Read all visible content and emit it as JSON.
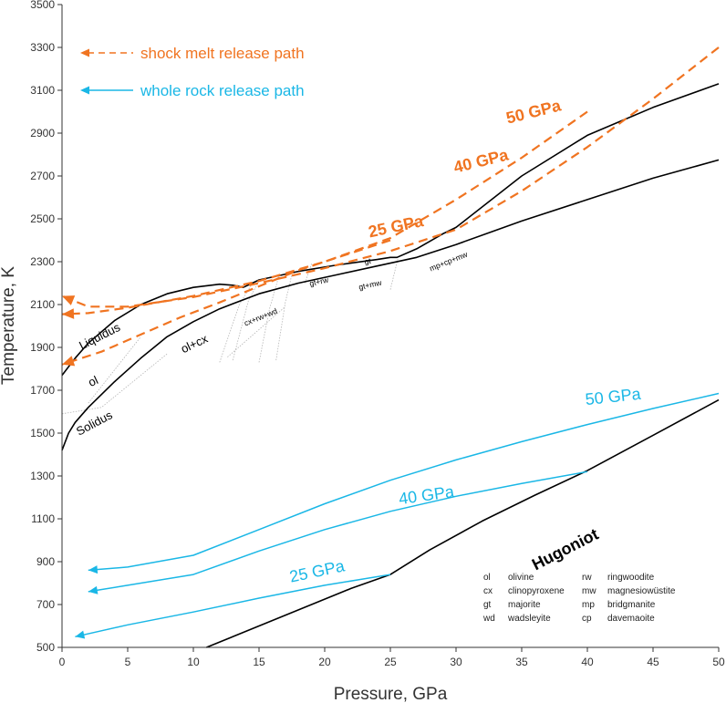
{
  "colors": {
    "orange": "#f07421",
    "cyan": "#1ab7e6",
    "black": "#000000",
    "grey": "#b5b5b5",
    "axis": "#333333"
  },
  "chart_data": {
    "type": "line",
    "title": "",
    "xlabel": "Pressure, GPa",
    "ylabel": "Temperature, K",
    "xlim": [
      0,
      50
    ],
    "ylim": [
      500,
      3500
    ],
    "xticks": [
      0,
      5,
      10,
      15,
      20,
      25,
      30,
      35,
      40,
      45,
      50
    ],
    "yticks": [
      500,
      700,
      900,
      1100,
      1300,
      1500,
      1700,
      1900,
      2100,
      2300,
      2500,
      2700,
      2900,
      3100,
      3300,
      3500
    ],
    "grid": false,
    "series": [
      {
        "name": "Liquidus",
        "style": "solid",
        "color": "black",
        "points": [
          [
            0,
            1770
          ],
          [
            1,
            1850
          ],
          [
            2,
            1920
          ],
          [
            4,
            2025
          ],
          [
            6,
            2100
          ],
          [
            8,
            2150
          ],
          [
            10,
            2180
          ],
          [
            12,
            2195
          ],
          [
            13,
            2190
          ],
          [
            13.8,
            2180
          ],
          [
            15,
            2215
          ],
          [
            18,
            2255
          ],
          [
            21,
            2285
          ],
          [
            24,
            2310
          ],
          [
            25,
            2320
          ],
          [
            25.5,
            2320
          ],
          [
            27,
            2360
          ],
          [
            29,
            2430
          ],
          [
            30,
            2460
          ],
          [
            35,
            2700
          ],
          [
            40,
            2890
          ],
          [
            45,
            3020
          ],
          [
            50,
            3130
          ]
        ]
      },
      {
        "name": "Solidus",
        "style": "solid",
        "color": "black",
        "points": [
          [
            0,
            1420
          ],
          [
            0.5,
            1500
          ],
          [
            1,
            1550
          ],
          [
            2,
            1620
          ],
          [
            4,
            1740
          ],
          [
            6,
            1850
          ],
          [
            8,
            1950
          ],
          [
            10,
            2020
          ],
          [
            12,
            2080
          ],
          [
            15,
            2150
          ],
          [
            18,
            2200
          ],
          [
            21,
            2240
          ],
          [
            24,
            2280
          ],
          [
            27,
            2320
          ],
          [
            30,
            2380
          ],
          [
            35,
            2490
          ],
          [
            40,
            2590
          ],
          [
            45,
            2690
          ],
          [
            50,
            2775
          ]
        ]
      },
      {
        "name": "Hugoniot",
        "style": "solid",
        "color": "black",
        "points": [
          [
            11,
            500
          ],
          [
            14,
            575
          ],
          [
            18,
            675
          ],
          [
            22,
            775
          ],
          [
            25,
            840
          ],
          [
            28,
            955
          ],
          [
            32,
            1090
          ],
          [
            36,
            1210
          ],
          [
            40,
            1325
          ],
          [
            45,
            1490
          ],
          [
            50,
            1655
          ]
        ]
      },
      {
        "name": "shock melt release path 50 GPa",
        "style": "dashed",
        "color": "orange",
        "label": "50 GPa",
        "arrow_end": true,
        "points": [
          [
            50,
            3300
          ],
          [
            45,
            3060
          ],
          [
            40,
            2835
          ],
          [
            35,
            2630
          ],
          [
            30,
            2450
          ],
          [
            25,
            2350
          ],
          [
            20,
            2270
          ],
          [
            15,
            2200
          ],
          [
            10,
            2135
          ],
          [
            5,
            2090
          ],
          [
            2,
            2090
          ],
          [
            0,
            2140
          ]
        ]
      },
      {
        "name": "shock melt release path 40 GPa",
        "style": "dashed",
        "color": "orange",
        "label": "40 GPa",
        "arrow_end": true,
        "points": [
          [
            40,
            3000
          ],
          [
            35,
            2785
          ],
          [
            30,
            2590
          ],
          [
            25,
            2410
          ],
          [
            20,
            2300
          ],
          [
            15,
            2210
          ],
          [
            10,
            2140
          ],
          [
            5,
            2085
          ],
          [
            2,
            2060
          ],
          [
            0,
            2055
          ]
        ]
      },
      {
        "name": "shock melt release path 25 GPa",
        "style": "dashed",
        "color": "orange",
        "label": "25 GPa",
        "arrow_end": true,
        "points": [
          [
            25,
            2400
          ],
          [
            22,
            2340
          ],
          [
            18,
            2260
          ],
          [
            15,
            2185
          ],
          [
            12,
            2110
          ],
          [
            9,
            2040
          ],
          [
            6,
            1960
          ],
          [
            3,
            1880
          ],
          [
            1,
            1840
          ],
          [
            0,
            1820
          ]
        ]
      },
      {
        "name": "whole rock release path 50 GPa",
        "style": "solid",
        "color": "cyan",
        "label": "50 GPa",
        "arrow_end": true,
        "points": [
          [
            50,
            1685
          ],
          [
            45,
            1615
          ],
          [
            40,
            1540
          ],
          [
            35,
            1460
          ],
          [
            30,
            1375
          ],
          [
            25,
            1280
          ],
          [
            20,
            1170
          ],
          [
            15,
            1050
          ],
          [
            10,
            930
          ],
          [
            5,
            875
          ],
          [
            2,
            860
          ]
        ]
      },
      {
        "name": "whole rock release path 40 GPa",
        "style": "solid",
        "color": "cyan",
        "label": "40 GPa",
        "arrow_end": true,
        "points": [
          [
            40,
            1320
          ],
          [
            35,
            1265
          ],
          [
            30,
            1205
          ],
          [
            25,
            1135
          ],
          [
            20,
            1050
          ],
          [
            15,
            950
          ],
          [
            10,
            840
          ],
          [
            5,
            790
          ],
          [
            2,
            760
          ]
        ]
      },
      {
        "name": "whole rock release path 25 GPa",
        "style": "solid",
        "color": "cyan",
        "label": "25 GPa",
        "arrow_end": true,
        "points": [
          [
            25,
            840
          ],
          [
            20,
            790
          ],
          [
            15,
            730
          ],
          [
            10,
            665
          ],
          [
            5,
            605
          ],
          [
            1,
            550
          ]
        ]
      }
    ],
    "phase_boundaries": [
      {
        "name": "ol boundary",
        "points": [
          [
            0,
            1590
          ],
          [
            3,
            1620
          ],
          [
            8,
            1870
          ]
        ]
      },
      {
        "name": "mantle ol-cx boundary",
        "points": [
          [
            2,
            1640
          ],
          [
            6,
            1950
          ]
        ]
      },
      {
        "name": "cx+rw+wd boundary 1",
        "points": [
          [
            12,
            1830
          ],
          [
            13.5,
            2100
          ],
          [
            14.5,
            2200
          ]
        ]
      },
      {
        "name": "cx+rw+wd boundary 2",
        "points": [
          [
            13,
            1840
          ],
          [
            14.2,
            2120
          ],
          [
            15,
            2210
          ]
        ]
      },
      {
        "name": "cx+rw+wd boundary 3",
        "points": [
          [
            15,
            1830
          ],
          [
            15.8,
            2080
          ],
          [
            16.5,
            2230
          ]
        ]
      },
      {
        "name": "cx+rw+wd boundary 4",
        "points": [
          [
            16.3,
            1840
          ],
          [
            17,
            2110
          ],
          [
            17.5,
            2240
          ]
        ]
      },
      {
        "name": "cx+rw+wd boundary 5",
        "points": [
          [
            12.6,
            1855
          ],
          [
            17,
            2090
          ]
        ]
      },
      {
        "name": "gt+rw boundary",
        "points": [
          [
            18.5,
            2200
          ],
          [
            19,
            2290
          ]
        ]
      },
      {
        "name": "gt+mw boundary",
        "points": [
          [
            25,
            2170
          ],
          [
            25.6,
            2320
          ]
        ]
      }
    ],
    "annotations": [
      {
        "text": "shock melt release path",
        "color": "orange",
        "legend_arrow": "dashed"
      },
      {
        "text": "whole rock release path",
        "color": "cyan",
        "legend_arrow": "solid"
      },
      {
        "text": "50 GPa",
        "color": "orange",
        "x": 36,
        "y": 2975,
        "rotate": -14,
        "size": 18,
        "weight": "bold"
      },
      {
        "text": "40 GPa",
        "color": "orange",
        "x": 32,
        "y": 2745,
        "rotate": -14,
        "size": 18,
        "weight": "bold"
      },
      {
        "text": "25 GPa",
        "color": "orange",
        "x": 25.5,
        "y": 2440,
        "rotate": -12,
        "size": 18,
        "weight": "bold"
      },
      {
        "text": "50 GPa",
        "color": "cyan",
        "x": 42,
        "y": 1645,
        "rotate": -6,
        "size": 18,
        "weight": "normal"
      },
      {
        "text": "40 GPa",
        "color": "cyan",
        "x": 27.8,
        "y": 1185,
        "rotate": -8,
        "size": 18,
        "weight": "normal"
      },
      {
        "text": "25 GPa",
        "color": "cyan",
        "x": 19.5,
        "y": 830,
        "rotate": -12,
        "size": 18,
        "weight": "normal"
      },
      {
        "text": "Hugoniot",
        "color": "black",
        "x": 38.5,
        "y": 935,
        "rotate": -27,
        "size": 18,
        "weight": "bold"
      },
      {
        "text": "Liquidus",
        "color": "black",
        "x": 3,
        "y": 1935,
        "rotate": -27,
        "size": 13,
        "weight": "normal"
      },
      {
        "text": "ol",
        "color": "black",
        "x": 2.5,
        "y": 1725,
        "rotate": -25,
        "size": 13,
        "weight": "normal"
      },
      {
        "text": "Solidus",
        "color": "black",
        "x": 2.6,
        "y": 1530,
        "rotate": -28,
        "size": 13,
        "weight": "normal"
      },
      {
        "text": "ol+cx",
        "color": "black",
        "x": 10.2,
        "y": 1900,
        "rotate": -25,
        "size": 13,
        "weight": "normal"
      },
      {
        "text": "cx+rw+wd",
        "color": "black",
        "x": 15.2,
        "y": 2030,
        "rotate": -22,
        "size": 8.5,
        "weight": "normal"
      },
      {
        "text": "gt+rw",
        "color": "black",
        "x": 19.6,
        "y": 2195,
        "rotate": -12,
        "size": 8.5,
        "weight": "normal"
      },
      {
        "text": "gt",
        "color": "black",
        "x": 23.3,
        "y": 2290,
        "rotate": -8,
        "size": 8.5,
        "weight": "normal"
      },
      {
        "text": "gt+mw",
        "color": "black",
        "x": 23.5,
        "y": 2180,
        "rotate": -12,
        "size": 8.5,
        "weight": "normal"
      },
      {
        "text": "mp+cp+mw",
        "color": "black",
        "x": 29.5,
        "y": 2290,
        "rotate": -22,
        "size": 8.5,
        "weight": "normal"
      }
    ],
    "legend_position": "bottom-right",
    "legend": [
      {
        "abbr": "ol",
        "desc": "olivine"
      },
      {
        "abbr": "cx",
        "desc": "clinopyroxene"
      },
      {
        "abbr": "gt",
        "desc": "majorite"
      },
      {
        "abbr": "wd",
        "desc": "wadsleyite"
      },
      {
        "abbr": "rw",
        "desc": "ringwoodite"
      },
      {
        "abbr": "mw",
        "desc": "magnesiowüstite"
      },
      {
        "abbr": "mp",
        "desc": "bridgmanite"
      },
      {
        "abbr": "cp",
        "desc": "davemaoite"
      }
    ]
  }
}
